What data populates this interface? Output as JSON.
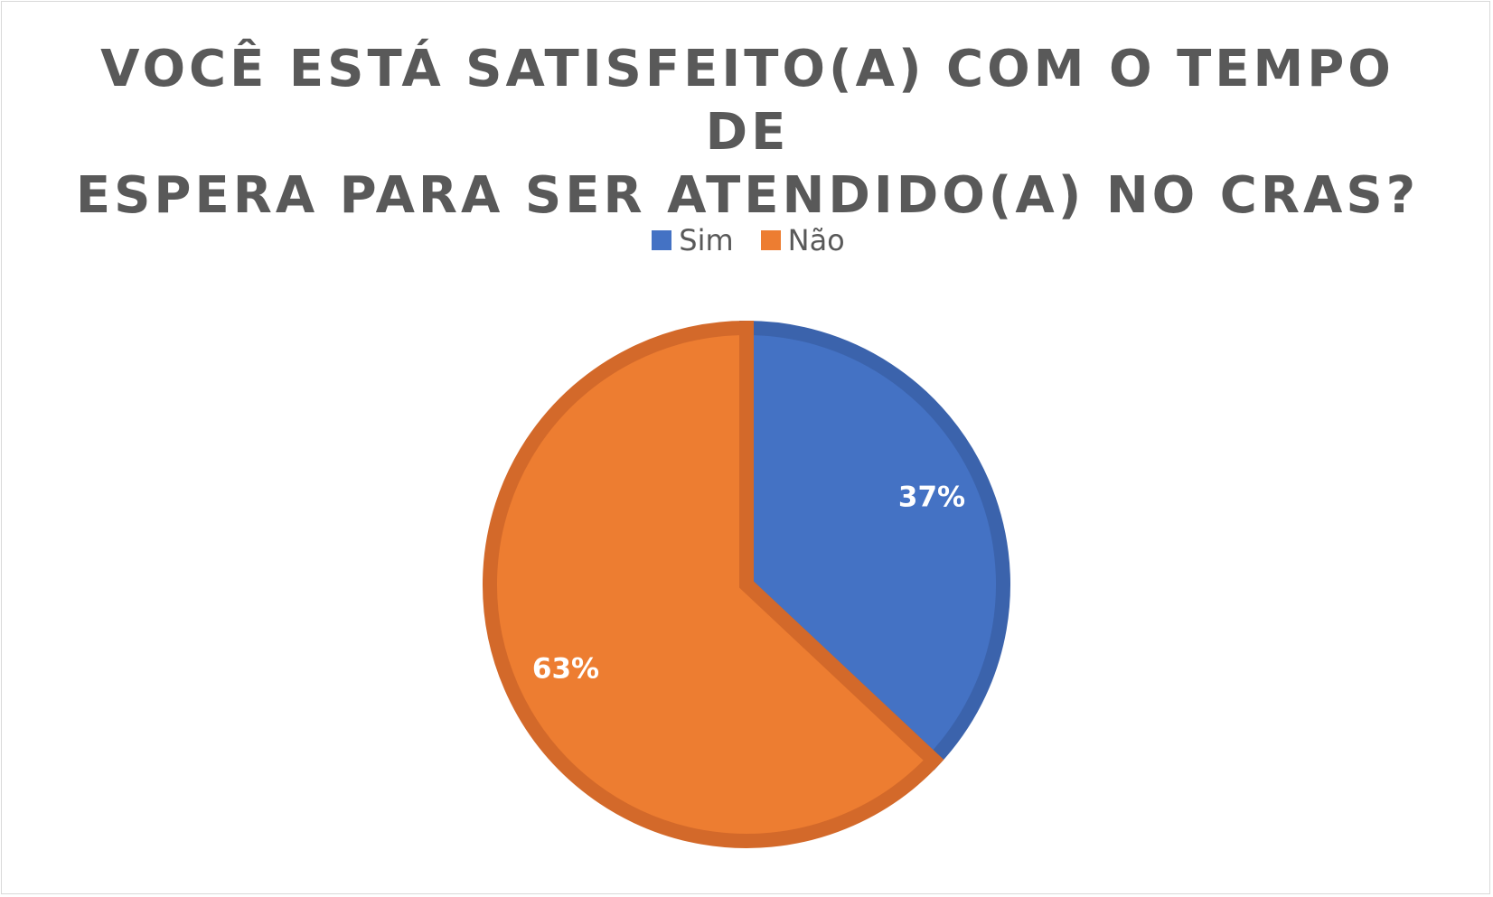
{
  "chart_data": {
    "type": "pie",
    "title_lines": [
      "VOCÊ ESTÁ SATISFEITO(A) COM O TEMPO DE",
      "ESPERA PARA SER ATENDIDO(A) NO CRAS?"
    ],
    "categories": [
      "Sim",
      "Não"
    ],
    "values": [
      37,
      63
    ],
    "data_labels": [
      "37%",
      "63%"
    ],
    "colors": [
      "#4472C4",
      "#ED7D31"
    ],
    "border_colors": [
      "#3B63AC",
      "#D3692A"
    ],
    "legend_position": "top",
    "start_angle": "12 o'clock, clockwise"
  }
}
